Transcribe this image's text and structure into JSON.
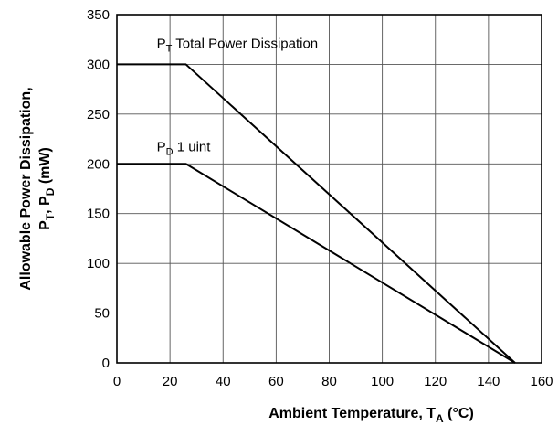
{
  "chart_data": {
    "type": "line",
    "xlabel": {
      "main": "Ambient Temperature, T",
      "sub": "A",
      "unit": " (°C)"
    },
    "ylabel": {
      "line1": "Allowable Power Dissipation,",
      "line2": [
        {
          "text": "P"
        },
        {
          "text": "T",
          "sub": true
        },
        {
          "text": ", P"
        },
        {
          "text": "D",
          "sub": true
        },
        {
          "text": " (mW)"
        }
      ]
    },
    "xlim": [
      0,
      160
    ],
    "ylim": [
      0,
      350
    ],
    "xticks": [
      0,
      20,
      40,
      60,
      80,
      100,
      120,
      140,
      160
    ],
    "yticks": [
      0,
      50,
      100,
      150,
      200,
      250,
      300,
      350
    ],
    "grid": true,
    "series": [
      {
        "name": "PT Total Power Dissipation",
        "label_main": "P",
        "label_sub": "T",
        "label_rest": " Total Power Dissipation",
        "x": [
          0,
          26,
          150
        ],
        "y": [
          300,
          300,
          0
        ]
      },
      {
        "name": "PD 1 uint",
        "label_main": "P",
        "label_sub": "D",
        "label_rest": " 1 uint",
        "x": [
          0,
          26,
          150
        ],
        "y": [
          200,
          200,
          0
        ]
      }
    ]
  }
}
